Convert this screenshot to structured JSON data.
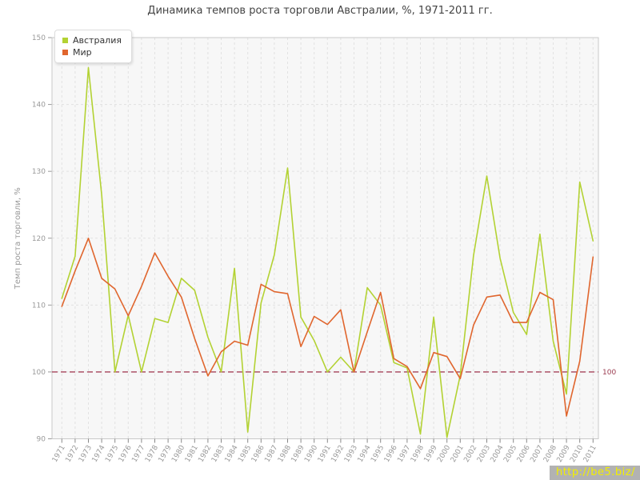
{
  "title": "Динамика темпов роста торговли Австралии, %, 1971-2011 гг.",
  "y_axis": {
    "label": "Темп роста торговли, %",
    "ticks": [
      150,
      140,
      130,
      120,
      110,
      100,
      90
    ],
    "min": 90,
    "max": 150
  },
  "x_axis": {
    "years": [
      1971,
      1972,
      1973,
      1974,
      1975,
      1976,
      1977,
      1978,
      1979,
      1980,
      1981,
      1982,
      1983,
      1984,
      1985,
      1986,
      1987,
      1988,
      1989,
      1990,
      1991,
      1992,
      1993,
      1994,
      1995,
      1996,
      1997,
      1998,
      1999,
      2000,
      2001,
      2002,
      2003,
      2004,
      2005,
      2006,
      2007,
      2008,
      2009,
      2010,
      2011
    ]
  },
  "reference_line": {
    "value": 100,
    "label": "100",
    "color": "#a5435a",
    "label_color": "#9a3b4f"
  },
  "legend": [
    {
      "label": "Австралия",
      "color": "#b3d233"
    },
    {
      "label": "Мир",
      "color": "#e0662e"
    }
  ],
  "watermark": {
    "text": "http://be5.biz/"
  },
  "colors": {
    "plot_bg": "#f7f7f7",
    "plot_border": "#c9c9c9",
    "grid": "#e2e2e2",
    "tick_text": "#999999",
    "title_text": "#444444"
  },
  "chart_data": {
    "type": "line",
    "title": "Динамика темпов роста торговли Австралии, %, 1971-2011 гг.",
    "xlabel": "",
    "ylabel": "Темп роста торговли, %",
    "ylim": [
      90,
      150
    ],
    "grid": true,
    "legend_position": "top-left",
    "x": [
      1971,
      1972,
      1973,
      1974,
      1975,
      1976,
      1977,
      1978,
      1979,
      1980,
      1981,
      1982,
      1983,
      1984,
      1985,
      1986,
      1987,
      1988,
      1989,
      1990,
      1991,
      1992,
      1993,
      1994,
      1995,
      1996,
      1997,
      1998,
      1999,
      2000,
      2001,
      2002,
      2003,
      2004,
      2005,
      2006,
      2007,
      2008,
      2009,
      2010,
      2011
    ],
    "series": [
      {
        "name": "Австралия",
        "color": "#b3d233",
        "values": [
          111.0,
          117.3,
          145.5,
          126.5,
          100.0,
          108.5,
          100.0,
          108.0,
          107.4,
          114.0,
          112.2,
          105.2,
          100.0,
          115.5,
          91.0,
          110.3,
          117.5,
          130.5,
          108.2,
          104.7,
          100.0,
          102.2,
          100.0,
          112.6,
          110.0,
          101.4,
          100.6,
          90.7,
          108.2,
          90.2,
          99.5,
          117.4,
          129.3,
          117.0,
          108.9,
          105.6,
          120.6,
          104.6,
          96.7,
          128.4,
          119.6
        ]
      },
      {
        "name": "Мир",
        "color": "#e0662e",
        "values": [
          109.8,
          115.1,
          120.0,
          114.0,
          112.4,
          108.4,
          112.8,
          117.8,
          114.3,
          111.2,
          105.0,
          99.4,
          103.0,
          104.6,
          104.0,
          113.1,
          112.0,
          111.7,
          103.8,
          108.3,
          107.1,
          109.3,
          100.0,
          106.0,
          111.9,
          102.0,
          100.8,
          97.5,
          102.9,
          102.3,
          99.0,
          107.0,
          111.2,
          111.5,
          107.4,
          107.4,
          111.9,
          110.8,
          93.4,
          101.6,
          117.2
        ]
      }
    ],
    "reference_line": {
      "value": 100,
      "label": "100"
    }
  }
}
